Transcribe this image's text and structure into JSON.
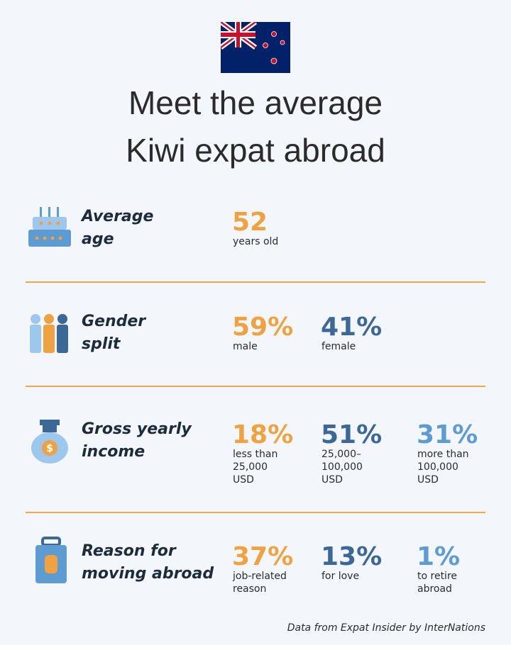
{
  "header": {
    "title_lines": [
      "Meet the average",
      "Kiwi expat abroad"
    ]
  },
  "sections": [
    {
      "label_lines": [
        "Average",
        "age"
      ],
      "stats": [
        {
          "value": "52",
          "label": "years old"
        }
      ]
    },
    {
      "label_lines": [
        "Gender",
        "split"
      ],
      "stats": [
        {
          "value": "59%",
          "label": "male"
        },
        {
          "value": "41%",
          "label": "female"
        }
      ]
    },
    {
      "label_lines": [
        "Gross yearly",
        "income"
      ],
      "stats": [
        {
          "value": "18%",
          "label": "less than 25,000 USD"
        },
        {
          "value": "51%",
          "label": "25,000–100,000 USD"
        },
        {
          "value": "31%",
          "label": "more than 100,000 USD"
        }
      ]
    },
    {
      "label_lines": [
        "Reason for",
        "moving abroad"
      ],
      "stats": [
        {
          "value": "37%",
          "label": "job-related reason"
        },
        {
          "value": "13%",
          "label": "for love"
        },
        {
          "value": "1%",
          "label": "to retire abroad"
        }
      ]
    }
  ],
  "footer": "Data from Expat Insider by InterNations"
}
